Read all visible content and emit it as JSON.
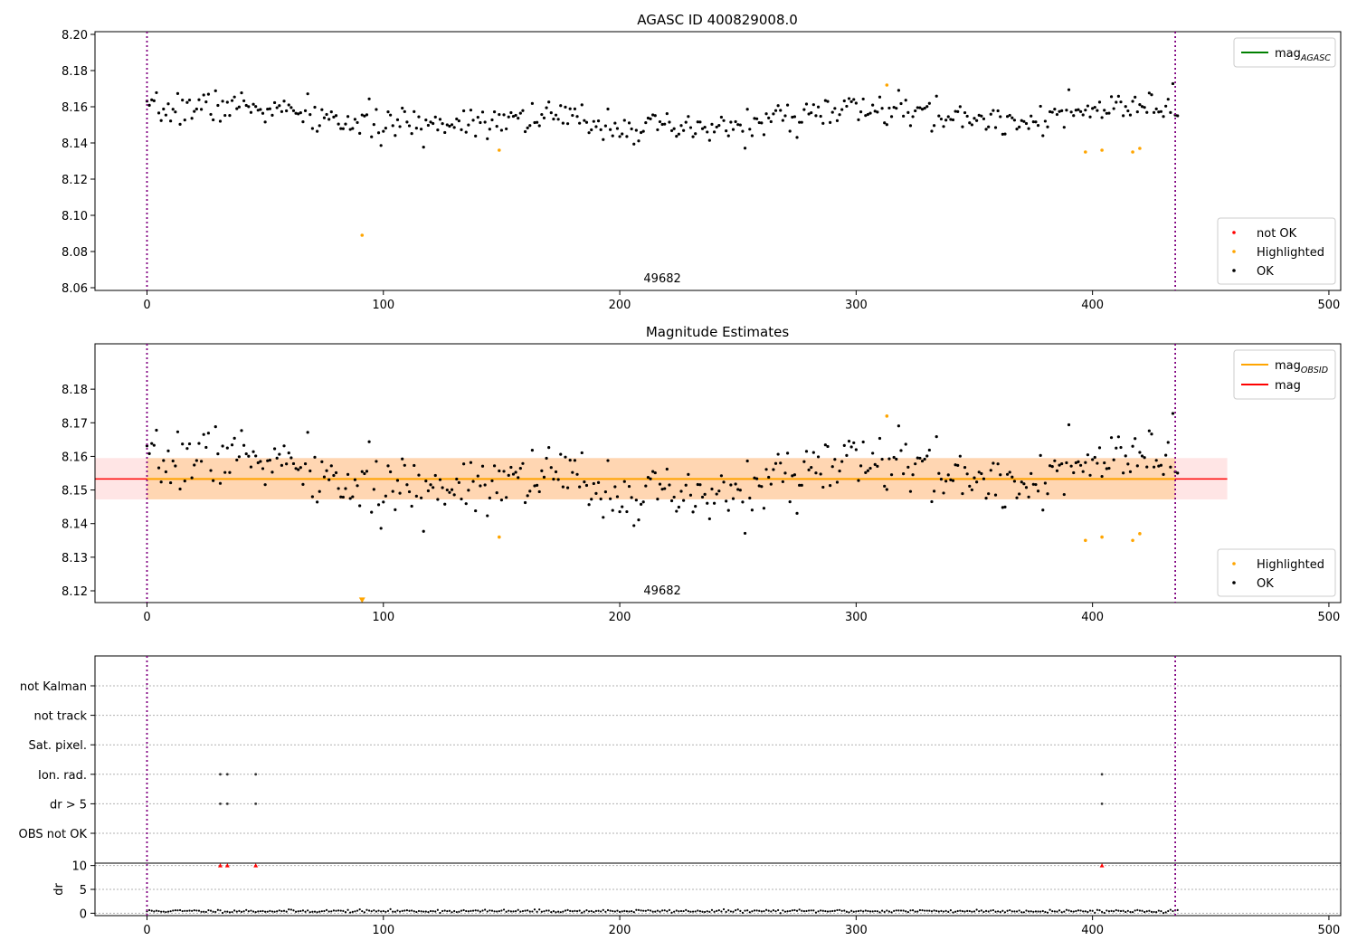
{
  "figure": {
    "title": "AGASC ID 400829008.0"
  },
  "chart_data": [
    {
      "type": "scatter",
      "title": "AGASC ID 400829008.0",
      "xlim": [
        -22,
        505
      ],
      "ylim": [
        8.0585,
        8.2015
      ],
      "xticks": [
        0,
        100,
        200,
        300,
        400,
        500
      ],
      "yticks": [
        8.06,
        8.08,
        8.1,
        8.12,
        8.14,
        8.16,
        8.18,
        8.2
      ],
      "ytick_decimals": 2,
      "obsid_label": "49682",
      "obsid_label_x": 218,
      "obs_bounds": [
        0,
        435
      ],
      "line_legend": [
        {
          "name": "mag",
          "sub": "AGASC",
          "color": "#008000"
        }
      ],
      "point_legend": [
        {
          "name": "not OK",
          "color": "#ff0000"
        },
        {
          "name": "Highlighted",
          "color": "#ffa500"
        },
        {
          "name": "OK",
          "color": "#000000"
        }
      ],
      "highlighted": [
        [
          91,
          8.089
        ],
        [
          149,
          8.136
        ],
        [
          313,
          8.172
        ],
        [
          397,
          8.135
        ],
        [
          404,
          8.136
        ],
        [
          417,
          8.135
        ],
        [
          420,
          8.137
        ]
      ],
      "ok_series": {
        "n": 437,
        "mean": 8.1535,
        "amplitude": 0.0065,
        "noise": 0.0045,
        "seed": 7
      }
    },
    {
      "type": "scatter",
      "title": "Magnitude Estimates",
      "xlim": [
        -22,
        505
      ],
      "ylim": [
        8.1165,
        8.1935
      ],
      "xticks": [
        0,
        100,
        200,
        300,
        400,
        500
      ],
      "yticks": [
        8.12,
        8.13,
        8.14,
        8.15,
        8.16,
        8.17,
        8.18
      ],
      "ytick_decimals": 2,
      "obsid_label": "49682",
      "obsid_label_x": 218,
      "obs_bounds": [
        0,
        435
      ],
      "mag": 8.1533,
      "mag_band": [
        8.1472,
        8.1595
      ],
      "mag_obsid": 8.1533,
      "mag_obsid_band": [
        8.1472,
        8.1595
      ],
      "line_legend": [
        {
          "name": "mag",
          "sub": "OBSID",
          "color": "#ffa500"
        },
        {
          "name": "mag",
          "sub": "",
          "color": "#ff0000"
        }
      ],
      "point_legend": [
        {
          "name": "Highlighted",
          "color": "#ffa500"
        },
        {
          "name": "OK",
          "color": "#000000"
        }
      ],
      "highlighted": [
        [
          149,
          8.136
        ],
        [
          313,
          8.172
        ],
        [
          397,
          8.135
        ],
        [
          404,
          8.136
        ],
        [
          417,
          8.135
        ],
        [
          420,
          8.137
        ]
      ],
      "lower_limit_marker": [
        91,
        8.1172
      ],
      "ok_series": {
        "n": 437,
        "mean": 8.1535,
        "amplitude": 0.0065,
        "noise": 0.0045,
        "seed": 7
      }
    },
    {
      "type": "scatter",
      "title": "",
      "xlim": [
        -22,
        505
      ],
      "flag_rows": [
        "not Kalman",
        "not track",
        "Sat. pixel.",
        "Ion. rad.",
        "dr > 5",
        "OBS not OK"
      ],
      "flag_points": {
        "Ion. rad.": [
          31,
          34,
          46,
          404
        ],
        "dr > 5": [
          31,
          34,
          46,
          404
        ]
      },
      "obs_bounds": [
        0,
        435
      ],
      "dr_ylabel": "dr",
      "dr_ylim": [
        -0.5,
        10.5
      ],
      "dr_yticks": [
        0,
        5,
        10
      ],
      "dr_xticks": [
        0,
        100,
        200,
        300,
        400,
        500
      ],
      "dr_clipped": [
        31,
        34,
        46,
        404
      ],
      "dr_series": {
        "n": 437,
        "base": 0.45,
        "noise": 0.25,
        "seed": 11
      }
    }
  ]
}
